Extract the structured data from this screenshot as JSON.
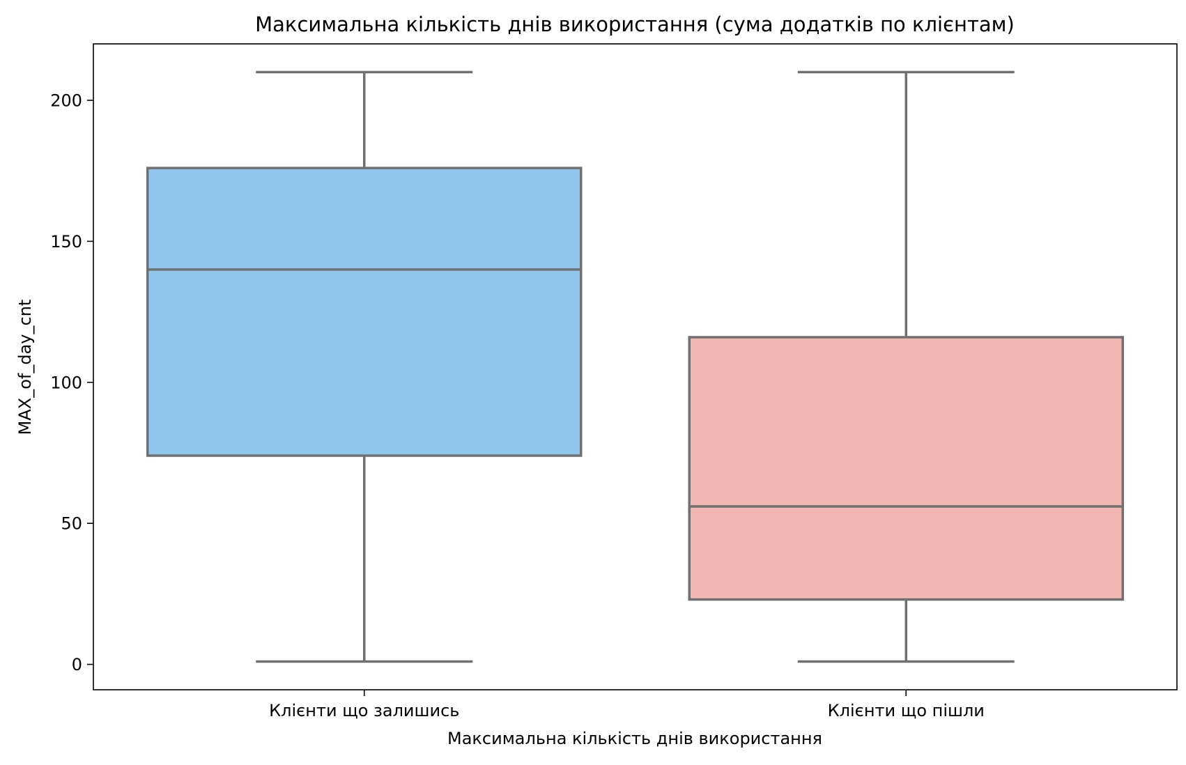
{
  "chart_data": {
    "type": "box",
    "title": "Максимальна кількість днів використання (сума додатків по клієнтам)",
    "xlabel": "Максимальна кількість днів використання",
    "ylabel": "MAX_of_day_cnt",
    "ylim": [
      -9,
      220
    ],
    "yticks": [
      0,
      50,
      100,
      150,
      200
    ],
    "grid": false,
    "categories": [
      "Клієнти що залишись",
      "Клієнти що пішли"
    ],
    "boxes": [
      {
        "category": "Клієнти що залишись",
        "whisker_low": 1,
        "q1": 74,
        "median": 140,
        "q3": 176,
        "whisker_high": 210,
        "color": "#90c6ed"
      },
      {
        "category": "Клієнти що пішли",
        "whisker_low": 1,
        "q1": 23,
        "median": 56,
        "q3": 116,
        "whisker_high": 210,
        "color": "#f2b7b2"
      }
    ],
    "line_color": "#707070"
  }
}
